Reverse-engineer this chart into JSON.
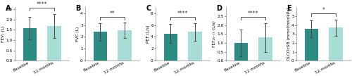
{
  "panels": [
    {
      "label": "A",
      "ylabel": "FEV₁ (L)",
      "baseline_val": 1.58,
      "followup_val": 1.7,
      "baseline_err": 0.55,
      "followup_err": 0.58,
      "ylim": [
        0.0,
        2.6
      ],
      "yticks": [
        0.0,
        0.5,
        1.0,
        1.5,
        2.0,
        2.5
      ],
      "sig": "****"
    },
    {
      "label": "B",
      "ylabel": "FVC (L)",
      "baseline_val": 2.42,
      "followup_val": 2.55,
      "baseline_err": 0.72,
      "followup_err": 0.65,
      "ylim": [
        0.0,
        4.5
      ],
      "yticks": [
        0,
        1,
        2,
        3,
        4
      ],
      "sig": "**"
    },
    {
      "label": "C",
      "ylabel": "PEF (L/s)",
      "baseline_val": 4.55,
      "followup_val": 4.85,
      "baseline_err": 1.6,
      "followup_err": 1.5,
      "ylim": [
        0.0,
        9.0
      ],
      "yticks": [
        0,
        2,
        4,
        6,
        8
      ],
      "sig": "****"
    },
    {
      "label": "D",
      "ylabel": "FEF₂₅₋₇₅ (L/s)",
      "baseline_val": 1.0,
      "followup_val": 1.3,
      "baseline_err": 0.75,
      "followup_err": 0.82,
      "ylim": [
        0.0,
        3.0
      ],
      "yticks": [
        0.0,
        0.5,
        1.0,
        1.5,
        2.0,
        2.5
      ],
      "sig": "****"
    },
    {
      "label": "E",
      "ylabel": "DLCOcSB (mmol/min/kPa)",
      "baseline_val": 3.55,
      "followup_val": 3.72,
      "baseline_err": 0.95,
      "followup_err": 0.9,
      "ylim": [
        0.0,
        6.0
      ],
      "yticks": [
        0,
        1,
        2,
        3,
        4,
        5
      ],
      "sig": "*"
    }
  ],
  "bar_color_baseline": "#2d8b82",
  "bar_color_followup": "#a8ddd5",
  "bar_edge_color": "none",
  "bar_width": 0.55,
  "x_positions": [
    1,
    2
  ],
  "xlim": [
    0.4,
    2.6
  ],
  "xtick_labels": [
    "Baseline",
    "12 months"
  ],
  "tick_fontsize": 4.2,
  "sig_fontsize": 5.5,
  "panel_label_fontsize": 7,
  "ylabel_fontsize": 4.2,
  "errorbar_color": "#444444",
  "errorbar_lw": 0.7,
  "capsize": 1.5,
  "capthick": 0.7,
  "spine_color": "#888888",
  "spine_lw": 0.5,
  "bracket_color": "#333333",
  "bracket_lw": 0.6,
  "background_color": "#ffffff"
}
